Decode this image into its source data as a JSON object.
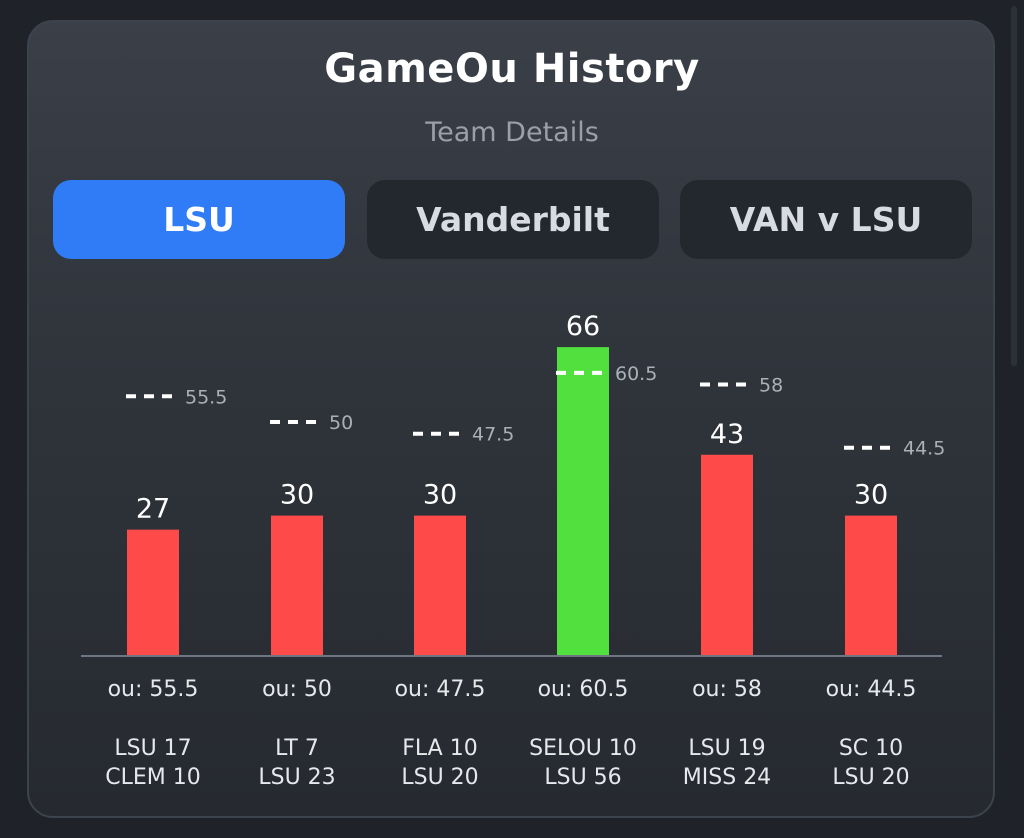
{
  "header": {
    "title": "GameOu History",
    "subtitle": "Team Details"
  },
  "tabs": [
    {
      "label": "LSU",
      "active": true
    },
    {
      "label": "Vanderbilt",
      "active": false
    },
    {
      "label": "VAN v LSU",
      "active": false
    }
  ],
  "colors": {
    "over": "#52e03f",
    "under": "#ff4a4a",
    "active_tab": "#2f7cf6"
  },
  "chart_data": {
    "type": "bar",
    "ylim": [
      0,
      70
    ],
    "grid": false,
    "series": [
      {
        "values": [
          27,
          30,
          30,
          66,
          43,
          30
        ]
      }
    ],
    "ou_lines": [
      55.5,
      50,
      47.5,
      60.5,
      58,
      44.5
    ],
    "ou_labels": [
      "ou: 55.5",
      "ou: 50",
      "ou: 47.5",
      "ou: 60.5",
      "ou: 58",
      "ou: 44.5"
    ],
    "games": [
      [
        "LSU 17",
        "CLEM 10"
      ],
      [
        "LT 7",
        "LSU 23"
      ],
      [
        "FLA 10",
        "LSU 20"
      ],
      [
        "SELOU 10",
        "LSU 56"
      ],
      [
        "LSU 19",
        "MISS 24"
      ],
      [
        "SC 10",
        "LSU 20"
      ]
    ]
  }
}
